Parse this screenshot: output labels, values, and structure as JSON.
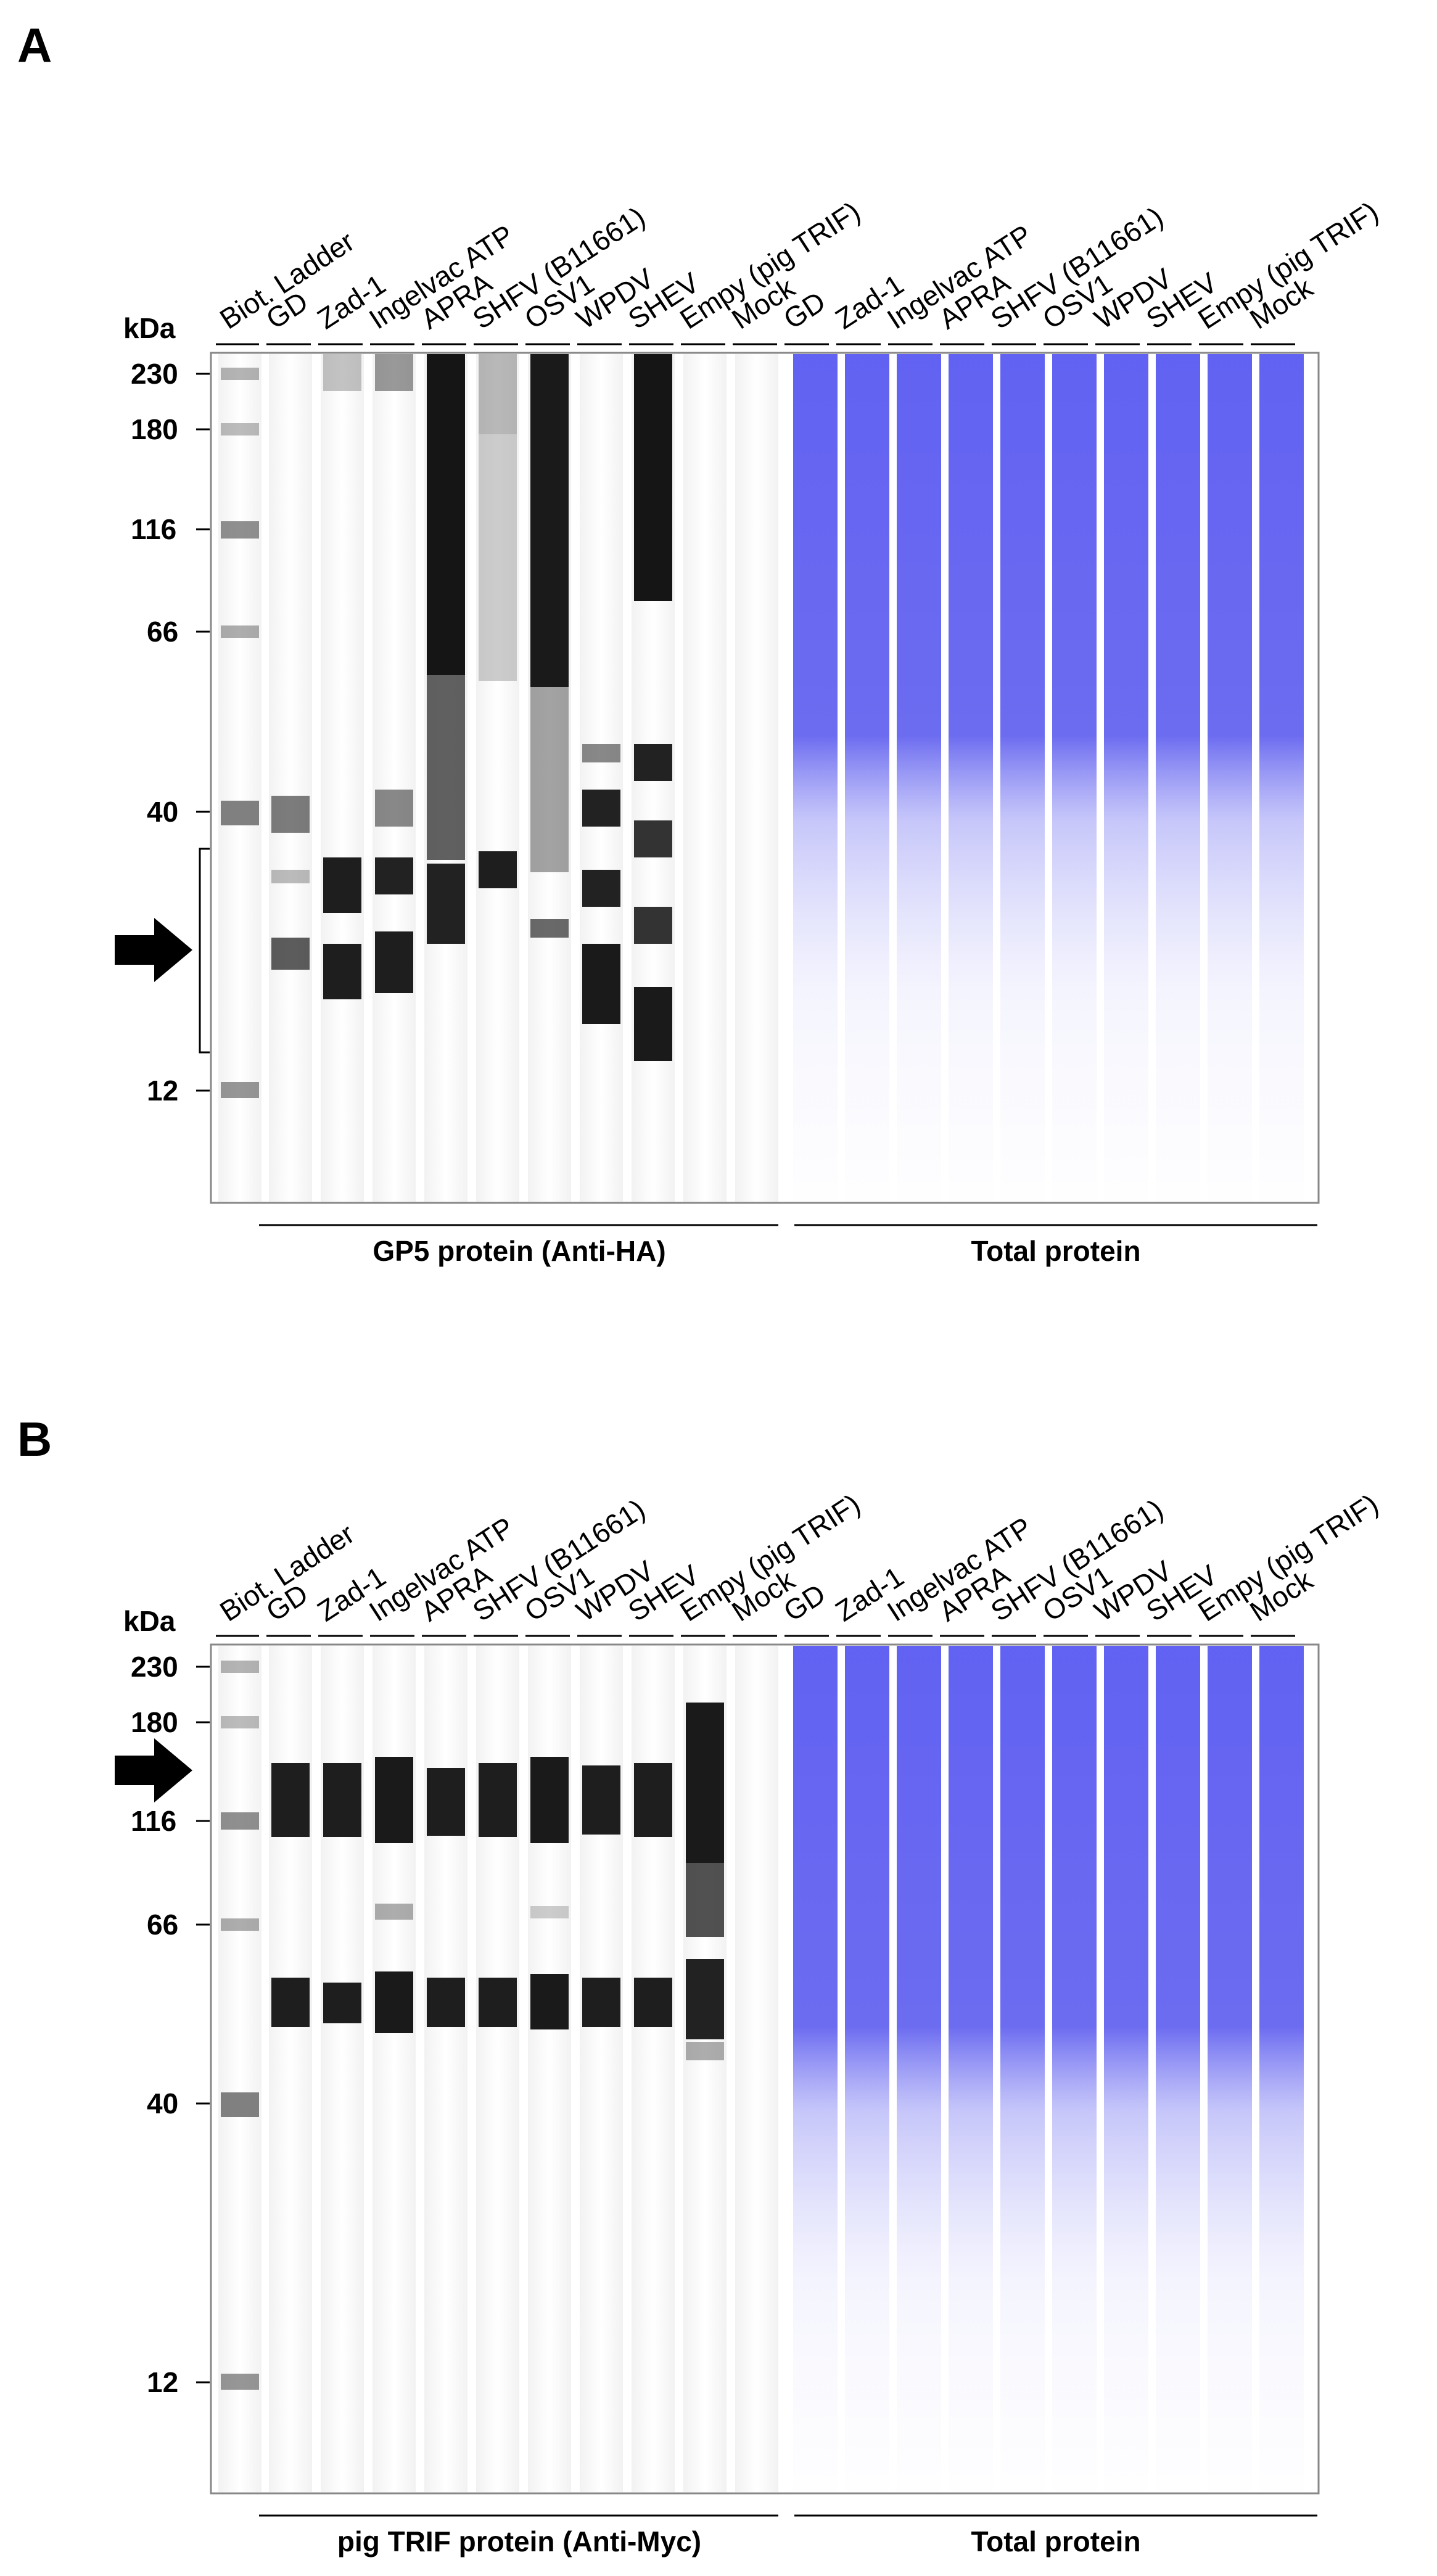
{
  "panels": [
    {
      "id": "A",
      "letter": "A",
      "kda_label": "kDa",
      "ladder_label": "Biot. Ladder",
      "sample_lanes": [
        "GD",
        "Zad-1",
        "Ingelvac ATP",
        "APRA",
        "SHFV (B11661)",
        "OSV1",
        "WPDV",
        "SHEV",
        "Empy (pig TRIF)",
        "Mock"
      ],
      "total_lanes": [
        "GD",
        "Zad-1",
        "Ingelvac ATP",
        "APRA",
        "SHFV (B11661)",
        "OSV1",
        "WPDV",
        "SHEV",
        "Empy (pig TRIF)",
        "Mock"
      ],
      "markers": [
        "230",
        "180",
        "116",
        "66",
        "40",
        "12"
      ],
      "left_group_label": "GP5 protein (Anti-HA)",
      "right_group_label": "Total protein"
    },
    {
      "id": "B",
      "letter": "B",
      "kda_label": "kDa",
      "ladder_label": "Biot. Ladder",
      "sample_lanes": [
        "GD",
        "Zad-1",
        "Ingelvac ATP",
        "APRA",
        "SHFV (B11661)",
        "OSV1",
        "WPDV",
        "SHEV",
        "Empy (pig TRIF)",
        "Mock"
      ],
      "total_lanes": [
        "GD",
        "Zad-1",
        "Ingelvac ATP",
        "APRA",
        "SHFV (B11661)",
        "OSV1",
        "WPDV",
        "SHEV",
        "Empy (pig TRIF)",
        "Mock"
      ],
      "markers": [
        "230",
        "180",
        "116",
        "66",
        "40",
        "12"
      ],
      "left_group_label": "pig TRIF protein (Anti-Myc)",
      "right_group_label": "Total protein"
    }
  ],
  "colors": {
    "gel_border": "#888888",
    "band_dark": "#202020",
    "band_gray": "#7a7a7a",
    "ladder_band": "#6a6a6a",
    "total_protein": "#4040ee",
    "arrow": "#000000"
  }
}
